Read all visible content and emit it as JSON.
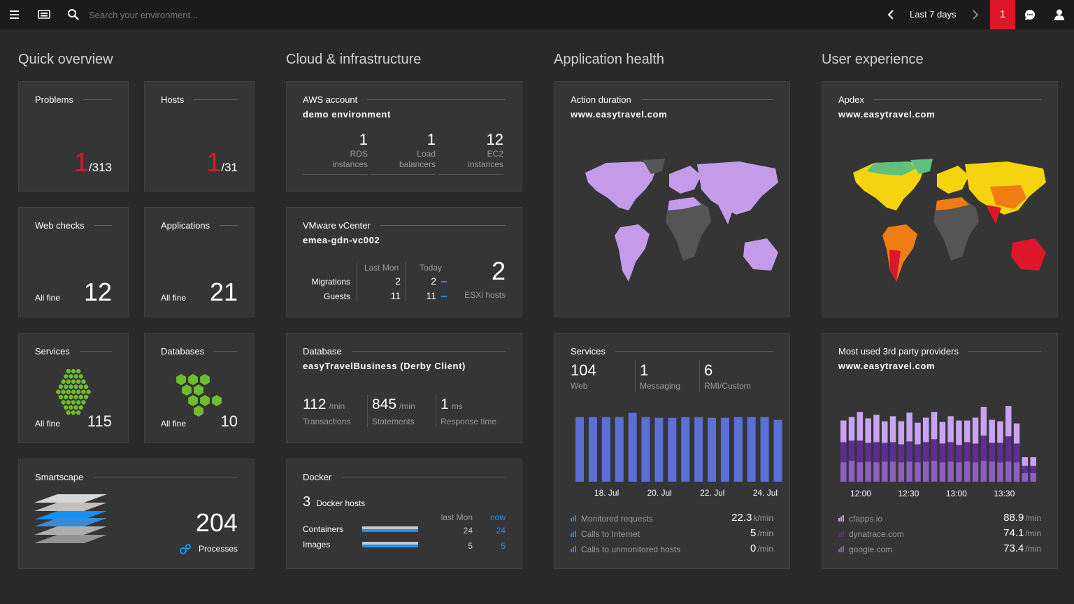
{
  "topbar": {
    "search": "Search your environment...",
    "timeframe": "Last 7 days",
    "alerts": 1
  },
  "sections": [
    "Quick overview",
    "Cloud & infrastructure",
    "Application health",
    "User experience"
  ],
  "quick": {
    "problems": {
      "title": "Problems",
      "value": 1,
      "total": "/313"
    },
    "hosts": {
      "title": "Hosts",
      "value": 1,
      "total": "/31"
    },
    "web_checks": {
      "title": "Web checks",
      "status": "All fine",
      "value": 12
    },
    "applications": {
      "title": "Applications",
      "status": "All fine",
      "value": 21
    },
    "services": {
      "title": "Services",
      "status": "All fine",
      "value": 115
    },
    "databases": {
      "title": "Databases",
      "status": "All fine",
      "value": 10
    },
    "smartscape": {
      "title": "Smartscape",
      "value": 204,
      "label": "Processes"
    }
  },
  "cloud": {
    "aws": {
      "title": "AWS account",
      "name": "demo environment",
      "metrics": [
        {
          "value": 1,
          "label": "RDS instances"
        },
        {
          "value": 1,
          "label": "Load balancers"
        },
        {
          "value": 12,
          "label": "EC2 instances"
        }
      ]
    },
    "vmware": {
      "title": "VMware vCenter",
      "name": "emea-gdn-vc002",
      "columns": [
        "Last Mon",
        "Today"
      ],
      "rows": [
        {
          "label": "Migrations",
          "values": [
            2,
            2
          ]
        },
        {
          "label": "Guests",
          "values": [
            11,
            11
          ]
        }
      ],
      "hosts": 2,
      "hosts_label": "ESXi hosts"
    },
    "database": {
      "title": "Database",
      "name": "easyTravelBusiness (Derby Client)",
      "metrics": [
        {
          "value": 112,
          "unit": "/min",
          "label": "Transactions"
        },
        {
          "value": 845,
          "unit": "/min",
          "label": "Statements"
        },
        {
          "value": 1,
          "unit": "ms",
          "label": "Response time"
        }
      ]
    },
    "docker": {
      "title": "Docker",
      "hosts": 3,
      "hosts_label": "Docker hosts",
      "columns": [
        "last Mon",
        "now"
      ],
      "rows": [
        {
          "label": "Containers",
          "values": [
            24,
            24
          ]
        },
        {
          "label": "Images",
          "values": [
            5,
            5
          ]
        }
      ]
    }
  },
  "app": {
    "action_duration": {
      "title": "Action duration",
      "site": "www.easytravel.com"
    },
    "services": {
      "title": "Services",
      "counts": [
        {
          "value": 104,
          "label": "Web"
        },
        {
          "value": 1,
          "label": "Messaging"
        },
        {
          "value": 6,
          "label": "RMI/Custom"
        }
      ],
      "chart": {
        "type": "bar",
        "color": "#5b6fd6",
        "values": [
          92,
          92,
          92,
          92,
          98,
          92,
          91,
          91,
          92,
          92,
          91,
          91,
          92,
          92,
          92,
          88
        ],
        "x_labels": [
          "18. Jul",
          "20. Jul",
          "22. Jul",
          "24. Jul"
        ]
      },
      "legend": [
        {
          "label": "Monitored requests",
          "value": 22.3,
          "unit": "k/min"
        },
        {
          "label": "Calls to Internet",
          "value": 5,
          "unit": "/min"
        },
        {
          "label": "Calls to unmonitored hosts",
          "value": 0,
          "unit": "/min"
        }
      ]
    }
  },
  "ux": {
    "apdex": {
      "title": "Apdex",
      "site": "www.easytravel.com"
    },
    "providers": {
      "title": "Most used 3rd party providers",
      "site": "www.easytravel.com",
      "chart": {
        "type": "stacked-bar",
        "x_labels": [
          "12:00",
          "12:30",
          "13:00",
          "13:30"
        ],
        "series": [
          {
            "name": "cfapps.io",
            "color": "#c9a3f2",
            "rate": 88.9,
            "unit": "/min",
            "values": [
              30,
              33,
              40,
              34,
              38,
              30,
              36,
              32,
              40,
              30,
              34,
              38,
              30,
              36,
              34,
              30,
              36,
              40,
              32,
              30,
              42,
              28,
              12,
              12
            ]
          },
          {
            "name": "dynatrace.com",
            "color": "#5e2d91",
            "rate": 74.1,
            "unit": "/min",
            "values": [
              28,
              28,
              30,
              26,
              28,
              26,
              27,
              25,
              28,
              25,
              27,
              30,
              26,
              27,
              24,
              27,
              26,
              35,
              26,
              27,
              35,
              26,
              10,
              10
            ]
          },
          {
            "name": "google.com",
            "color": "#8d5fbf",
            "rate": 73.4,
            "unit": "/min",
            "values": [
              27,
              29,
              27,
              28,
              27,
              28,
              28,
              27,
              28,
              27,
              28,
              29,
              27,
              28,
              27,
              28,
              27,
              29,
              28,
              27,
              28,
              27,
              12,
              12
            ]
          }
        ]
      }
    }
  }
}
